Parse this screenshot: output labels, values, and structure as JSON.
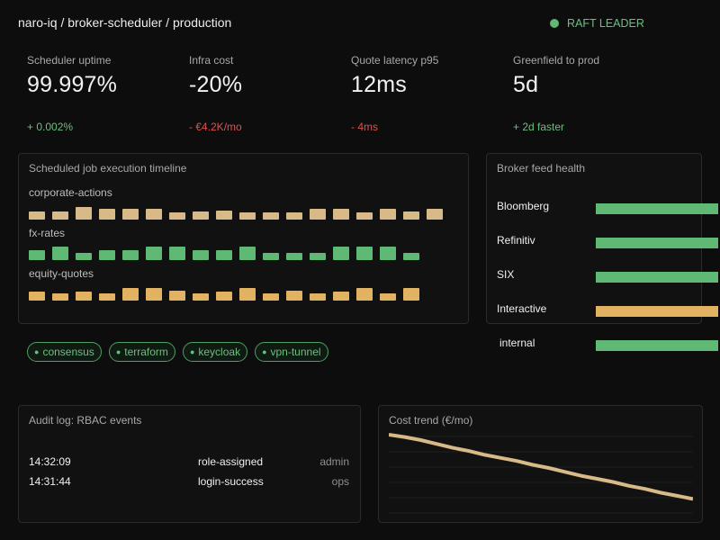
{
  "header": {
    "breadcrumb": "naro-iq / broker-scheduler / production",
    "status_label": "RAFT LEADER",
    "status_color": "#5fb873"
  },
  "kpis": [
    {
      "label": "Scheduler uptime",
      "value": "99.997%",
      "delta": "+ 0.002%",
      "trend": "positive"
    },
    {
      "label": "Infra cost",
      "value": "-20%",
      "delta": "- €4.2K/mo",
      "trend": "negative"
    },
    {
      "label": "Quote latency p95",
      "value": "12ms",
      "delta": "- 4ms",
      "trend": "negative"
    },
    {
      "label": "Greenfield to prod",
      "value": "5d",
      "delta": "+ 2d faster",
      "trend": "positive"
    }
  ],
  "timeline": {
    "title": "Scheduled job execution timeline",
    "rows": [
      {
        "label": "corporate-actions",
        "color": "#d8b988",
        "levels": [
          0.5,
          0.5,
          0.8,
          0.65,
          0.65,
          0.65,
          0.45,
          0.5,
          0.55,
          0.45,
          0.45,
          0.45,
          0.65,
          0.65,
          0.45,
          0.65,
          0.5,
          0.65
        ]
      },
      {
        "label": "fx-rates",
        "color": "#5fb873",
        "levels": [
          0.6,
          0.85,
          0.45,
          0.6,
          0.6,
          0.85,
          0.85,
          0.6,
          0.6,
          0.85,
          0.45,
          0.45,
          0.45,
          0.85,
          0.85,
          0.85,
          0.45
        ]
      },
      {
        "label": "equity-quotes",
        "color": "#e0b262",
        "levels": [
          0.55,
          0.45,
          0.55,
          0.45,
          0.8,
          0.8,
          0.6,
          0.45,
          0.55,
          0.8,
          0.45,
          0.6,
          0.45,
          0.55,
          0.8,
          0.45,
          0.8
        ]
      }
    ]
  },
  "broker_feed": {
    "title": "Broker feed health",
    "feeds": [
      {
        "name": "Bloomberg",
        "status_color": "#5fb873"
      },
      {
        "name": "Refinitiv",
        "status_color": "#5fb873"
      },
      {
        "name": "SIX",
        "status_color": "#5fb873"
      },
      {
        "name": "Interactive",
        "status_color": "#e0b262"
      },
      {
        "name": "internal",
        "status_color": "#5fb873"
      }
    ]
  },
  "tags": [
    "consensus",
    "terraform",
    "keycloak",
    "vpn-tunnel"
  ],
  "audit": {
    "title": "Audit log: RBAC events",
    "events": [
      {
        "time": "14:32:09",
        "event": "role-assigned",
        "role": "admin"
      },
      {
        "time": "14:31:44",
        "event": "login-success",
        "role": "ops"
      }
    ]
  },
  "cost_trend": {
    "title": "Cost trend (€/mo)",
    "line_color": "#d8b988",
    "chart_data": {
      "type": "line",
      "title": "Cost trend (€/mo)",
      "x": [
        0,
        1,
        2,
        3,
        4,
        5,
        6,
        7,
        8,
        9,
        10,
        11,
        12,
        13,
        14,
        15,
        16,
        17,
        18,
        19
      ],
      "values": [
        100,
        97,
        93,
        88,
        83,
        79,
        74,
        70,
        66,
        61,
        57,
        52,
        47,
        43,
        39,
        34,
        30,
        25,
        21,
        17
      ],
      "ylim": [
        0,
        100
      ],
      "grid": true
    }
  }
}
